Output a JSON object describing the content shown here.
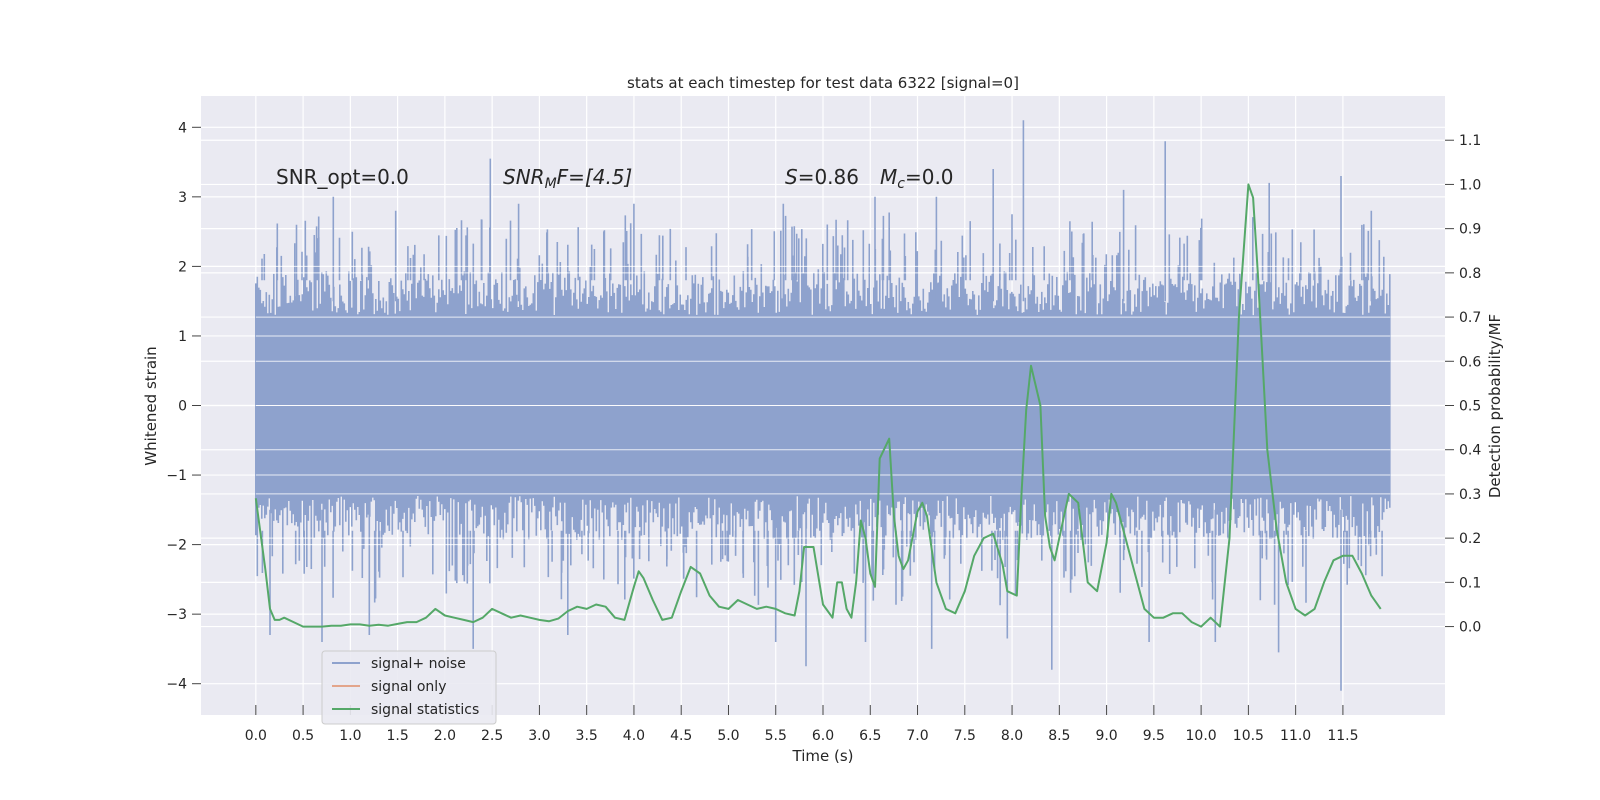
{
  "chart_data": {
    "type": "line",
    "title": "stats at each timestep for test data 6322 [signal=0]",
    "xlabel": "Time (s)",
    "ylabel_left": "Whitened strain",
    "ylabel_right": "Detection probability/MF",
    "xlim": [
      -0.58,
      12.58
    ],
    "ylim_left": [
      -4.45,
      4.45
    ],
    "ylim_right": [
      -0.2,
      1.2
    ],
    "x_ticks": [
      "0.0",
      "0.5",
      "1.0",
      "1.5",
      "2.0",
      "2.5",
      "3.0",
      "3.5",
      "4.0",
      "4.5",
      "5.0",
      "5.5",
      "6.0",
      "6.5",
      "7.0",
      "7.5",
      "8.0",
      "8.5",
      "9.0",
      "9.5",
      "10.0",
      "10.5",
      "11.0",
      "11.5"
    ],
    "y_ticks_left": [
      "−4",
      "−3",
      "−2",
      "−1",
      "0",
      "1",
      "2",
      "3",
      "4"
    ],
    "y_ticks_right": [
      "0.0",
      "0.1",
      "0.2",
      "0.3",
      "0.4",
      "0.5",
      "0.6",
      "0.7",
      "0.8",
      "0.9",
      "1.0",
      "1.1"
    ],
    "grid": true,
    "legend_position": "lower-left",
    "annotations": {
      "snr_opt": "SNR_opt=0.0",
      "snr_mf_base": "SNR",
      "snr_mf_sub": "M",
      "snr_mf_rest": "F=[4.5]",
      "s_label": "S",
      "s_value": "=0.86",
      "mc_base": "M",
      "mc_sub": "c",
      "mc_value": "=0.0"
    },
    "noise_envelope": {
      "x_range": [
        0.0,
        12.0
      ],
      "upper_typical": 2.0,
      "lower_typical": -2.0,
      "peaks_upper": [
        [
          0.43,
          2.6
        ],
        [
          0.82,
          3.0
        ],
        [
          1.48,
          2.8
        ],
        [
          2.48,
          3.55
        ],
        [
          2.78,
          2.9
        ],
        [
          4.0,
          2.9
        ],
        [
          5.58,
          2.9
        ],
        [
          6.55,
          3.0
        ],
        [
          7.2,
          3.0
        ],
        [
          7.8,
          3.4
        ],
        [
          8.12,
          4.1
        ],
        [
          9.18,
          3.1
        ],
        [
          9.62,
          3.8
        ],
        [
          10.72,
          3.2
        ],
        [
          11.48,
          3.3
        ],
        [
          11.8,
          2.8
        ]
      ],
      "peaks_lower": [
        [
          0.15,
          -3.3
        ],
        [
          0.7,
          -3.4
        ],
        [
          1.2,
          -3.3
        ],
        [
          2.3,
          -3.5
        ],
        [
          3.3,
          -3.3
        ],
        [
          5.5,
          -3.4
        ],
        [
          5.82,
          -3.75
        ],
        [
          6.45,
          -3.4
        ],
        [
          7.15,
          -3.5
        ],
        [
          7.95,
          -3.35
        ],
        [
          8.42,
          -3.8
        ],
        [
          9.45,
          -3.4
        ],
        [
          10.15,
          -3.4
        ],
        [
          10.82,
          -3.55
        ],
        [
          11.48,
          -4.1
        ]
      ]
    },
    "series": [
      {
        "name": "signal+ noise",
        "color": "#8ea2cd",
        "axis": "left"
      },
      {
        "name": "signal only",
        "color": "#e3a58b",
        "axis": "left",
        "x": [],
        "y": []
      },
      {
        "name": "signal statistics",
        "color": "#55a868",
        "axis": "right",
        "x": [
          0.0,
          0.1,
          0.15,
          0.2,
          0.25,
          0.3,
          0.4,
          0.5,
          0.6,
          0.7,
          0.8,
          0.9,
          1.0,
          1.1,
          1.2,
          1.3,
          1.4,
          1.5,
          1.6,
          1.7,
          1.8,
          1.9,
          2.0,
          2.1,
          2.2,
          2.3,
          2.4,
          2.5,
          2.6,
          2.7,
          2.8,
          2.9,
          3.0,
          3.1,
          3.2,
          3.3,
          3.4,
          3.5,
          3.6,
          3.7,
          3.8,
          3.9,
          4.0,
          4.05,
          4.1,
          4.2,
          4.3,
          4.4,
          4.5,
          4.6,
          4.7,
          4.8,
          4.9,
          5.0,
          5.1,
          5.2,
          5.3,
          5.4,
          5.5,
          5.6,
          5.7,
          5.75,
          5.8,
          5.9,
          6.0,
          6.1,
          6.15,
          6.2,
          6.25,
          6.3,
          6.35,
          6.4,
          6.45,
          6.5,
          6.55,
          6.6,
          6.7,
          6.75,
          6.8,
          6.85,
          6.9,
          7.0,
          7.05,
          7.1,
          7.2,
          7.3,
          7.4,
          7.5,
          7.6,
          7.7,
          7.8,
          7.9,
          7.95,
          8.05,
          8.1,
          8.15,
          8.2,
          8.3,
          8.35,
          8.4,
          8.45,
          8.5,
          8.6,
          8.7,
          8.8,
          8.9,
          9.0,
          9.05,
          9.1,
          9.2,
          9.3,
          9.4,
          9.5,
          9.6,
          9.7,
          9.8,
          9.9,
          10.0,
          10.1,
          10.2,
          10.3,
          10.4,
          10.5,
          10.55,
          10.6,
          10.65,
          10.7,
          10.8,
          10.9,
          11.0,
          11.1,
          11.2,
          11.3,
          11.4,
          11.5,
          11.6,
          11.7,
          11.8,
          11.9
        ],
        "y": [
          0.29,
          0.13,
          0.04,
          0.015,
          0.015,
          0.02,
          0.01,
          0.0,
          0.0,
          0.0,
          0.002,
          0.002,
          0.005,
          0.005,
          0.002,
          0.004,
          0.002,
          0.006,
          0.01,
          0.01,
          0.02,
          0.04,
          0.025,
          0.02,
          0.015,
          0.01,
          0.02,
          0.04,
          0.03,
          0.02,
          0.025,
          0.02,
          0.015,
          0.012,
          0.018,
          0.035,
          0.045,
          0.04,
          0.05,
          0.045,
          0.02,
          0.015,
          0.09,
          0.125,
          0.11,
          0.06,
          0.015,
          0.02,
          0.08,
          0.135,
          0.12,
          0.07,
          0.045,
          0.04,
          0.06,
          0.05,
          0.04,
          0.045,
          0.04,
          0.03,
          0.025,
          0.08,
          0.18,
          0.18,
          0.05,
          0.02,
          0.1,
          0.1,
          0.04,
          0.02,
          0.1,
          0.24,
          0.2,
          0.12,
          0.09,
          0.38,
          0.425,
          0.25,
          0.16,
          0.13,
          0.15,
          0.26,
          0.28,
          0.25,
          0.1,
          0.04,
          0.03,
          0.08,
          0.16,
          0.2,
          0.21,
          0.14,
          0.08,
          0.07,
          0.3,
          0.49,
          0.59,
          0.5,
          0.25,
          0.18,
          0.15,
          0.2,
          0.3,
          0.28,
          0.1,
          0.08,
          0.19,
          0.3,
          0.28,
          0.2,
          0.12,
          0.04,
          0.02,
          0.02,
          0.03,
          0.03,
          0.01,
          0.0,
          0.02,
          0.0,
          0.2,
          0.7,
          1.0,
          0.97,
          0.8,
          0.6,
          0.4,
          0.22,
          0.1,
          0.04,
          0.025,
          0.04,
          0.1,
          0.15,
          0.16,
          0.16,
          0.12,
          0.07,
          0.04
        ],
        "missing_fix": true
      }
    ]
  }
}
